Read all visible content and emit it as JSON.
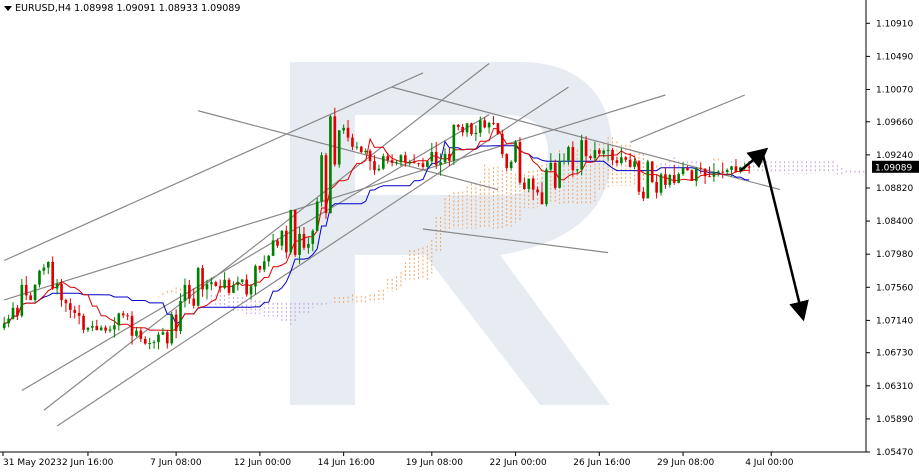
{
  "header": {
    "symbol": "EURUSD,H4",
    "open": "1.08998",
    "high": "1.09091",
    "low": "1.08933",
    "close": "1.09089"
  },
  "chart_data": {
    "type": "candlestick",
    "title": "",
    "current_price": 1.09089,
    "current_price_label": "1.09089",
    "ylim": [
      1.0547,
      1.1118
    ],
    "y_ticks": [
      1.1091,
      1.1049,
      1.1007,
      1.0966,
      1.0924,
      1.0882,
      1.084,
      1.0798,
      1.0756,
      1.0714,
      1.0673,
      1.0631,
      1.0589,
      1.0547
    ],
    "y_tick_labels": [
      "1.10910",
      "1.10490",
      "1.10070",
      "1.09660",
      "1.09240",
      "1.08820",
      "1.08400",
      "1.07980",
      "1.07560",
      "1.07140",
      "1.06730",
      "1.06310",
      "1.05890",
      "1.05470"
    ],
    "x_tick_labels": [
      "31 May 2023",
      "2 Jun 16:00",
      "7 Jun 08:00",
      "12 Jun 00:00",
      "14 Jun 16:00",
      "19 Jun 08:00",
      "22 Jun 00:00",
      "26 Jun 16:00",
      "29 Jun 08:00",
      "4 Jul 00:00"
    ],
    "colors": {
      "bull": "#008000",
      "bear": "#e00000",
      "tenkan": "#e00000",
      "kijun": "#0000cc",
      "cloud_bull": "#f4a460",
      "cloud_bear": "#c8a0e8",
      "trendline": "#888888",
      "forecast": "#000000",
      "price_label_bg": "#000000",
      "price_label_text": "#ffffff"
    },
    "anchors": [
      [
        1.073,
        1.071
      ],
      [
        1.076,
        1.074
      ],
      [
        1.079,
        1.076
      ],
      [
        1.0705,
        1.072
      ],
      [
        1.069,
        1.07
      ],
      [
        1.073,
        1.0715
      ],
      [
        1.068,
        1.068
      ],
      [
        1.07,
        1.069
      ],
      [
        1.079,
        1.074
      ],
      [
        1.076,
        1.076
      ],
      [
        1.076,
        1.0745
      ],
      [
        1.078,
        1.076
      ],
      [
        1.084,
        1.08
      ],
      [
        1.086,
        1.079
      ],
      [
        1.096,
        1.088
      ],
      [
        1.0945,
        1.093
      ],
      [
        1.0905,
        1.092
      ],
      [
        1.092,
        1.092
      ],
      [
        1.0915,
        1.091
      ],
      [
        1.0935,
        1.092
      ],
      [
        1.1,
        1.096
      ],
      [
        1.095,
        1.096
      ],
      [
        1.085,
        1.092
      ],
      [
        1.089,
        1.086
      ],
      [
        1.092,
        1.089
      ],
      [
        1.095,
        1.092
      ],
      [
        1.092,
        1.093
      ],
      [
        1.089,
        1.091
      ],
      [
        1.086,
        1.09
      ],
      [
        1.09,
        1.089
      ],
      [
        1.0905,
        1.09
      ],
      [
        1.09,
        1.0905
      ],
      [
        1.091,
        1.0905
      ]
    ],
    "forecast_path": [
      {
        "date_label": "4 Jul 00:00",
        "price": 1.0904
      },
      {
        "date_label": "4 Jul 00:00",
        "price": 1.0927
      },
      {
        "date_label": "4 Jul 00:00",
        "price": 1.0722
      }
    ]
  }
}
